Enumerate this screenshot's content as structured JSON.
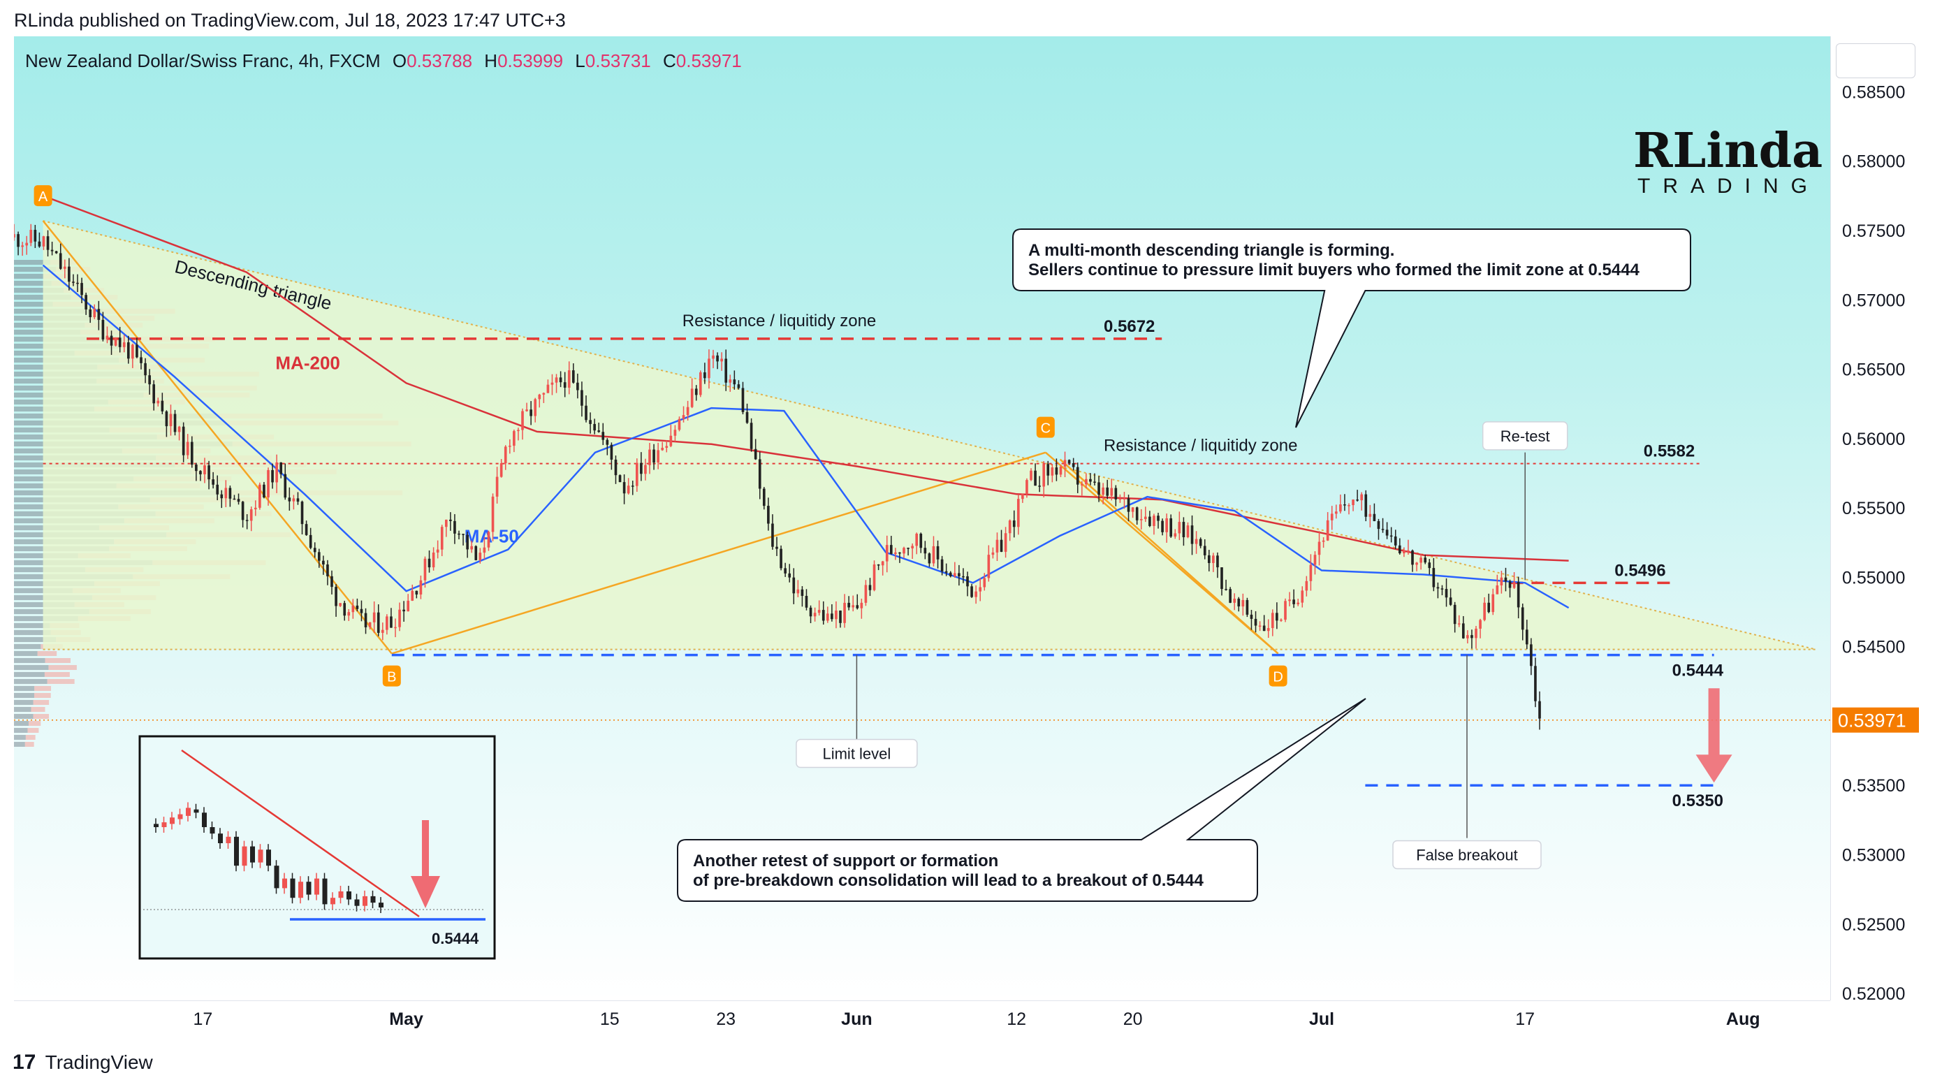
{
  "header": {
    "published": "RLinda published on TradingView.com, Jul 18, 2023 17:47 UTC+3"
  },
  "instrument": {
    "title": "New Zealand Dollar/Swiss Franc, 4h, FXCM",
    "o_label": "O",
    "o": "0.53788",
    "h_label": "H",
    "h": "0.53999",
    "l_label": "L",
    "l": "0.53731",
    "c_label": "C",
    "c": "0.53971"
  },
  "logo": {
    "main": "RLinda",
    "sub": "TRADING"
  },
  "footer": {
    "brand": "TradingView",
    "mark": "17"
  },
  "colors": {
    "up": "#ef5350",
    "down": "#222222",
    "ma200": "#d9323a",
    "ma50": "#2962ff",
    "limit": "#2962ff",
    "resistance": "#e53935",
    "triangle": "#f7c06a",
    "price_tag": "#f57c00"
  },
  "chart_data": {
    "type": "candlestick",
    "title": "New Zealand Dollar/Swiss Franc, 4h, FXCM",
    "ylim": [
      0.5195,
      0.589
    ],
    "y_ticks": [
      "0.58500",
      "0.58000",
      "0.57500",
      "0.57000",
      "0.56500",
      "0.56000",
      "0.55500",
      "0.55000",
      "0.54500",
      "0.54000",
      "0.53500",
      "0.53000",
      "0.52500",
      "0.52000"
    ],
    "y_tick_values": [
      0.585,
      0.58,
      0.575,
      0.57,
      0.565,
      0.56,
      0.555,
      0.55,
      0.545,
      0.54,
      0.535,
      0.53,
      0.525,
      0.52
    ],
    "x_ticks": [
      {
        "label": "17",
        "date": "2023-04-17"
      },
      {
        "label": "May",
        "date": "2023-05-01"
      },
      {
        "label": "15",
        "date": "2023-05-15"
      },
      {
        "label": "23",
        "date": "2023-05-23"
      },
      {
        "label": "Jun",
        "date": "2023-06-01"
      },
      {
        "label": "12",
        "date": "2023-06-12"
      },
      {
        "label": "20",
        "date": "2023-06-20"
      },
      {
        "label": "Jul",
        "date": "2023-07-03"
      },
      {
        "label": "17",
        "date": "2023-07-17"
      },
      {
        "label": "Aug",
        "date": "2023-08-01"
      }
    ],
    "x_range": [
      "2023-04-04",
      "2023-08-07"
    ],
    "last_price": "0.53971",
    "last_value": 0.53971,
    "path": [
      [
        "2023-04-04",
        0.5745
      ],
      [
        "2023-04-06",
        0.5742
      ],
      [
        "2023-04-08",
        0.5712
      ],
      [
        "2023-04-10",
        0.568
      ],
      [
        "2023-04-12",
        0.5663
      ],
      [
        "2023-04-14",
        0.5625
      ],
      [
        "2023-04-16",
        0.559
      ],
      [
        "2023-04-18",
        0.5565
      ],
      [
        "2023-04-20",
        0.5545
      ],
      [
        "2023-04-22",
        0.5578
      ],
      [
        "2023-04-24",
        0.5538
      ],
      [
        "2023-04-26",
        0.5488
      ],
      [
        "2023-04-28",
        0.5466
      ],
      [
        "2023-04-30",
        0.5468
      ],
      [
        "2023-05-02",
        0.55
      ],
      [
        "2023-05-04",
        0.5545
      ],
      [
        "2023-05-06",
        0.5508
      ],
      [
        "2023-05-08",
        0.56
      ],
      [
        "2023-05-10",
        0.5625
      ],
      [
        "2023-05-12",
        0.5645
      ],
      [
        "2023-05-14",
        0.561
      ],
      [
        "2023-05-16",
        0.5565
      ],
      [
        "2023-05-18",
        0.559
      ],
      [
        "2023-05-20",
        0.5615
      ],
      [
        "2023-05-22",
        0.566
      ],
      [
        "2023-05-24",
        0.5632
      ],
      [
        "2023-05-26",
        0.553
      ],
      [
        "2023-05-28",
        0.5485
      ],
      [
        "2023-05-30",
        0.547
      ],
      [
        "2023-06-01",
        0.5478
      ],
      [
        "2023-06-03",
        0.5518
      ],
      [
        "2023-06-05",
        0.5528
      ],
      [
        "2023-06-07",
        0.5508
      ],
      [
        "2023-06-09",
        0.549
      ],
      [
        "2023-06-11",
        0.5525
      ],
      [
        "2023-06-13",
        0.557
      ],
      [
        "2023-06-15",
        0.558
      ],
      [
        "2023-06-17",
        0.5565
      ],
      [
        "2023-06-19",
        0.5555
      ],
      [
        "2023-06-21",
        0.5545
      ],
      [
        "2023-06-23",
        0.5535
      ],
      [
        "2023-06-25",
        0.5522
      ],
      [
        "2023-06-27",
        0.548
      ],
      [
        "2023-06-29",
        0.5465
      ],
      [
        "2023-07-01",
        0.548
      ],
      [
        "2023-07-03",
        0.553
      ],
      [
        "2023-07-05",
        0.5558
      ],
      [
        "2023-07-07",
        0.5542
      ],
      [
        "2023-07-09",
        0.5515
      ],
      [
        "2023-07-11",
        0.5495
      ],
      [
        "2023-07-13",
        0.5455
      ],
      [
        "2023-07-15",
        0.549
      ],
      [
        "2023-07-16",
        0.55
      ],
      [
        "2023-07-17",
        0.5462
      ],
      [
        "2023-07-18",
        0.5397
      ]
    ],
    "ma200": [
      [
        "2023-04-06",
        0.5775
      ],
      [
        "2023-04-20",
        0.572
      ],
      [
        "2023-05-01",
        0.564
      ],
      [
        "2023-05-10",
        0.5605
      ],
      [
        "2023-05-22",
        0.5596
      ],
      [
        "2023-06-01",
        0.558
      ],
      [
        "2023-06-12",
        0.556
      ],
      [
        "2023-06-22",
        0.5556
      ],
      [
        "2023-07-03",
        0.5532
      ],
      [
        "2023-07-10",
        0.5516
      ],
      [
        "2023-07-20",
        0.5512
      ]
    ],
    "ma50": [
      [
        "2023-04-06",
        0.5725
      ],
      [
        "2023-04-15",
        0.5645
      ],
      [
        "2023-04-24",
        0.556
      ],
      [
        "2023-05-01",
        0.549
      ],
      [
        "2023-05-08",
        0.552
      ],
      [
        "2023-05-14",
        0.559
      ],
      [
        "2023-05-22",
        0.5622
      ],
      [
        "2023-05-27",
        0.562
      ],
      [
        "2023-06-03",
        0.5518
      ],
      [
        "2023-06-09",
        0.5496
      ],
      [
        "2023-06-15",
        0.553
      ],
      [
        "2023-06-21",
        0.5558
      ],
      [
        "2023-06-27",
        0.5548
      ],
      [
        "2023-07-03",
        0.5505
      ],
      [
        "2023-07-10",
        0.5502
      ],
      [
        "2023-07-17",
        0.5496
      ],
      [
        "2023-07-20",
        0.5478
      ]
    ],
    "triangle": {
      "upper": [
        [
          "2023-04-06",
          0.5757
        ],
        [
          "2023-08-06",
          0.5448
        ]
      ],
      "lower": [
        [
          "2023-04-06",
          0.5448
        ],
        [
          "2023-08-06",
          0.5448
        ]
      ]
    },
    "pattern_points": [
      {
        "label": "A",
        "date": "2023-04-06",
        "value": 0.5757
      },
      {
        "label": "B",
        "date": "2023-04-30",
        "value": 0.5445
      },
      {
        "label": "C",
        "date": "2023-06-14",
        "value": 0.559
      },
      {
        "label": "D",
        "date": "2023-06-30",
        "value": 0.5445
      }
    ],
    "levels": [
      {
        "value": 0.5672,
        "label": "0.5672",
        "name": "Resistance / liquitidy zone",
        "style": "dashed-red",
        "from": "2023-04-09",
        "to": "2023-06-22"
      },
      {
        "value": 0.5582,
        "label": "0.5582",
        "name": "Resistance / liquitidy zone",
        "style": "dotted-red",
        "from": "2023-04-06",
        "to": "2023-07-29"
      },
      {
        "value": 0.5496,
        "label": "0.5496",
        "style": "dashed-red",
        "from": "2023-07-16",
        "to": "2023-07-27"
      },
      {
        "value": 0.5444,
        "label": "0.5444",
        "style": "dashed-blue",
        "from": "2023-04-30",
        "to": "2023-07-30"
      },
      {
        "value": 0.535,
        "label": "0.5350",
        "style": "dashed-blue",
        "from": "2023-07-06",
        "to": "2023-07-30"
      }
    ],
    "labels": {
      "ma200": "MA-200",
      "ma50": "MA-50",
      "triangle": "Descending triangle",
      "limit_level": "Limit level",
      "retest": "Re-test",
      "false_breakout": "False breakout"
    },
    "callouts": [
      "A multi-month descending triangle is forming.",
      "Sellers continue to pressure limit buyers who formed the limit zone at 0.5444",
      "Another retest of support or formation",
      "of pre-breakdown consolidation will lead to a breakout of 0.5444"
    ],
    "inset": {
      "level_label": "0.5444"
    },
    "grid": false
  }
}
